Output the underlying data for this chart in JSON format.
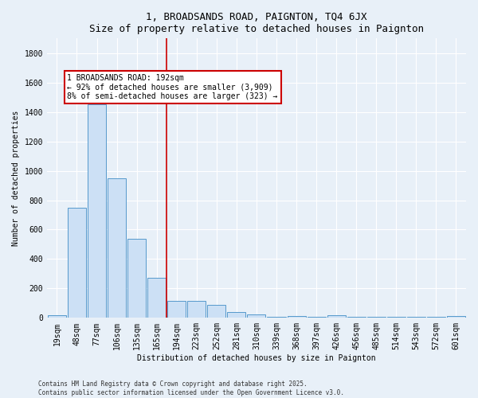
{
  "title": "1, BROADSANDS ROAD, PAIGNTON, TQ4 6JX",
  "subtitle": "Size of property relative to detached houses in Paignton",
  "xlabel": "Distribution of detached houses by size in Paignton",
  "ylabel": "Number of detached properties",
  "bin_labels": [
    "19sqm",
    "48sqm",
    "77sqm",
    "106sqm",
    "135sqm",
    "165sqm",
    "194sqm",
    "223sqm",
    "252sqm",
    "281sqm",
    "310sqm",
    "339sqm",
    "368sqm",
    "397sqm",
    "426sqm",
    "456sqm",
    "485sqm",
    "514sqm",
    "543sqm",
    "572sqm",
    "601sqm"
  ],
  "bar_values": [
    20,
    750,
    1450,
    950,
    535,
    270,
    115,
    115,
    90,
    42,
    25,
    5,
    15,
    5,
    20,
    5,
    5,
    5,
    5,
    5,
    15
  ],
  "bar_color": "#cce0f5",
  "bar_edge_color": "#5599cc",
  "property_bin_index": 6,
  "red_line_color": "#cc0000",
  "annotation_text": "1 BROADSANDS ROAD: 192sqm\n← 92% of detached houses are smaller (3,909)\n8% of semi-detached houses are larger (323) →",
  "annotation_box_color": "#ffffff",
  "annotation_border_color": "#cc0000",
  "footer_line1": "Contains HM Land Registry data © Crown copyright and database right 2025.",
  "footer_line2": "Contains public sector information licensed under the Open Government Licence v3.0.",
  "background_color": "#e8f0f8",
  "ylim": [
    0,
    1900
  ],
  "yticks": [
    0,
    200,
    400,
    600,
    800,
    1000,
    1200,
    1400,
    1600,
    1800
  ],
  "title_fontsize": 9,
  "axis_fontsize": 7,
  "tick_fontsize": 7,
  "ylabel_fontsize": 7
}
